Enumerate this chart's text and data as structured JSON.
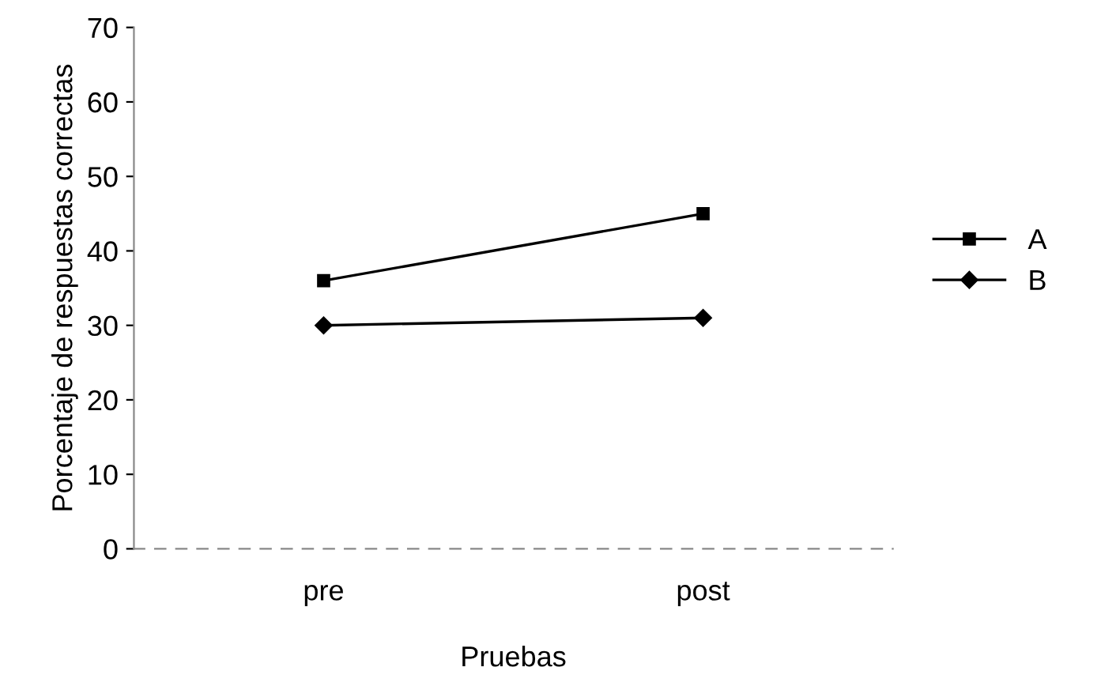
{
  "chart_data": {
    "type": "line",
    "xlabel": "Pruebas",
    "ylabel": "Porcentaje de respuestas correctas",
    "categories": [
      "pre",
      "post"
    ],
    "series": [
      {
        "name": "A",
        "color": "#000000",
        "marker": "square",
        "values": [
          36,
          45
        ]
      },
      {
        "name": "B",
        "color": "#000000",
        "marker": "diamond",
        "values": [
          30,
          31
        ]
      }
    ],
    "ylim": [
      0,
      70
    ],
    "yticks": [
      0,
      10,
      20,
      30,
      40,
      50,
      60,
      70
    ],
    "grid": false,
    "legend": "right",
    "line_style": "solid"
  }
}
